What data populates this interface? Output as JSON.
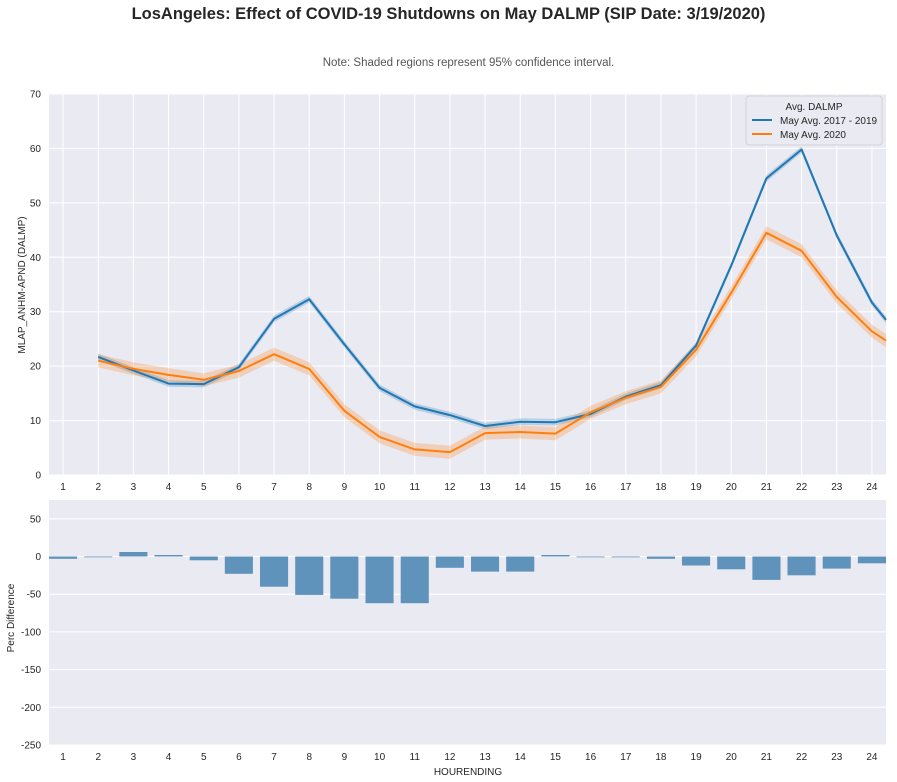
{
  "title": "LosAngeles: Effect of COVID-19 Shutdowns on May DALMP (SIP Date: 3/19/2020)",
  "note": "Note: Shaded regions represent 95% confidence interval.",
  "colors": {
    "series1": "#1f77b4",
    "series2": "#ff7f0e",
    "bars": "#5f93bb",
    "background": "#eaeaf2",
    "grid": "#ffffff"
  },
  "chart_data": [
    {
      "type": "line",
      "ylabel": "MLAP_ANHM-APND (DALMP)",
      "xlabel": "",
      "x": [
        1,
        2,
        3,
        4,
        5,
        6,
        7,
        8,
        9,
        10,
        11,
        12,
        13,
        14,
        15,
        16,
        17,
        18,
        19,
        20,
        21,
        22,
        23,
        24
      ],
      "xlim": [
        0.6,
        24.4
      ],
      "ylim": [
        0,
        70
      ],
      "yticks": [
        0,
        10,
        20,
        30,
        40,
        50,
        60,
        70
      ],
      "xticks": [
        1,
        2,
        3,
        4,
        5,
        6,
        7,
        8,
        9,
        10,
        11,
        12,
        13,
        14,
        15,
        16,
        17,
        18,
        19,
        20,
        21,
        22,
        23,
        24
      ],
      "legend": {
        "title": "Avg. DALMP",
        "location": "top-right"
      },
      "series": [
        {
          "name": "May Avg. 2017 - 2019",
          "x": [
            2,
            3,
            4,
            5,
            6,
            7,
            8,
            9,
            10,
            11,
            12,
            13,
            14,
            15,
            16,
            17,
            18,
            19,
            20,
            21,
            22,
            23,
            24,
            24.4
          ],
          "values": [
            21.7,
            19.2,
            16.8,
            16.7,
            19.8,
            28.7,
            32.3,
            24,
            16,
            12.6,
            11,
            9,
            9.8,
            9.7,
            11.2,
            14.4,
            16.5,
            23.8,
            38.5,
            54.5,
            59.8,
            44,
            31.7,
            28.5
          ],
          "ci": 0.6
        },
        {
          "name": "May Avg. 2020",
          "x": [
            2,
            3,
            4,
            5,
            6,
            7,
            8,
            9,
            10,
            11,
            12,
            13,
            14,
            15,
            16,
            17,
            18,
            19,
            20,
            21,
            22,
            23,
            24,
            24.4
          ],
          "values": [
            21,
            19.5,
            18.4,
            17.5,
            19.1,
            22.2,
            19.5,
            11.8,
            7,
            4.7,
            4.2,
            7.7,
            7.9,
            7.6,
            11.5,
            14.2,
            16.2,
            23,
            33.5,
            44.5,
            41.2,
            32.7,
            26.4,
            24.7
          ],
          "ci": 1.2
        }
      ]
    },
    {
      "type": "bar",
      "ylabel": "Perc Difference",
      "xlabel": "HOURENDING",
      "categories": [
        "1",
        "2",
        "3",
        "4",
        "5",
        "6",
        "7",
        "8",
        "9",
        "10",
        "11",
        "12",
        "13",
        "14",
        "15",
        "16",
        "17",
        "18",
        "19",
        "20",
        "21",
        "22",
        "23",
        "24"
      ],
      "values": [
        -3,
        -1,
        6,
        2,
        -5,
        -23,
        -40,
        -51,
        -56,
        -62,
        -62,
        -15,
        -20,
        -20,
        2,
        -1,
        -1,
        -3,
        -12,
        -17,
        -31,
        -25,
        -16,
        -9
      ],
      "ylim": [
        -250,
        75
      ],
      "yticks": [
        50,
        0,
        -50,
        -100,
        -150,
        -200,
        -250
      ]
    }
  ]
}
